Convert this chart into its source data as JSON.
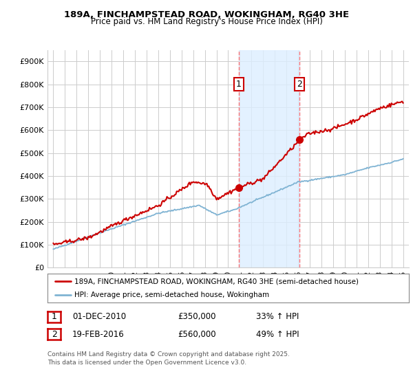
{
  "title_line1": "189A, FINCHAMPSTEAD ROAD, WOKINGHAM, RG40 3HE",
  "title_line2": "Price paid vs. HM Land Registry's House Price Index (HPI)",
  "background_color": "#ffffff",
  "plot_bg_color": "#ffffff",
  "grid_color": "#cccccc",
  "hpi_color": "#7fb3d3",
  "price_color": "#cc0000",
  "shaded_color": "#ddeeff",
  "marker_color": "#cc0000",
  "vline_color": "#ff6666",
  "sale1_date_num": 2010.917,
  "sale1_price": 350000,
  "sale2_date_num": 2016.13,
  "sale2_price": 560000,
  "ylim_min": 0,
  "ylim_max": 950000,
  "xlim_min": 1994.5,
  "xlim_max": 2025.5,
  "yticks": [
    0,
    100000,
    200000,
    300000,
    400000,
    500000,
    600000,
    700000,
    800000,
    900000
  ],
  "ytick_labels": [
    "£0",
    "£100K",
    "£200K",
    "£300K",
    "£400K",
    "£500K",
    "£600K",
    "£700K",
    "£800K",
    "£900K"
  ],
  "xticks": [
    1995,
    1996,
    1997,
    1998,
    1999,
    2000,
    2001,
    2002,
    2003,
    2004,
    2005,
    2006,
    2007,
    2008,
    2009,
    2010,
    2011,
    2012,
    2013,
    2014,
    2015,
    2016,
    2017,
    2018,
    2019,
    2020,
    2021,
    2022,
    2023,
    2024,
    2025
  ],
  "legend_label1": "189A, FINCHAMPSTEAD ROAD, WOKINGHAM, RG40 3HE (semi-detached house)",
  "legend_label2": "HPI: Average price, semi-detached house, Wokingham",
  "footer": "Contains HM Land Registry data © Crown copyright and database right 2025.\nThis data is licensed under the Open Government Licence v3.0.",
  "table_row1": [
    "1",
    "01-DEC-2010",
    "£350,000",
    "33% ↑ HPI"
  ],
  "table_row2": [
    "2",
    "19-FEB-2016",
    "£560,000",
    "49% ↑ HPI"
  ]
}
